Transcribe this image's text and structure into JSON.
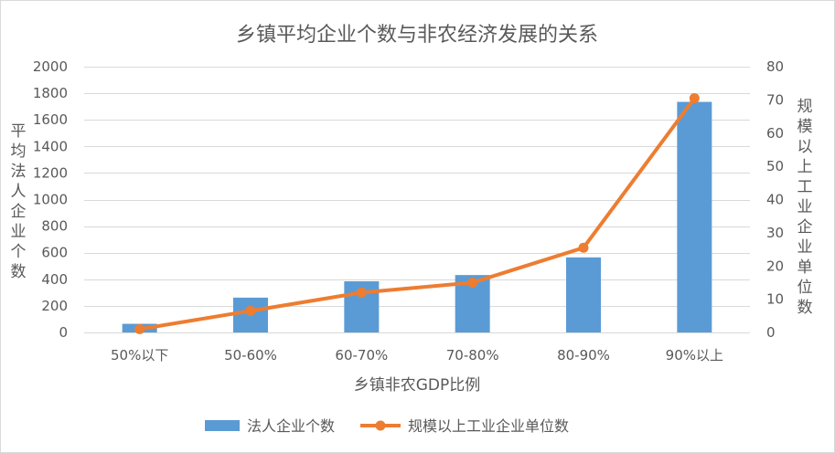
{
  "chart_data": {
    "type": "bar",
    "title": "乡镇平均企业个数与非农经济发展的关系",
    "xlabel": "乡镇非农GDP比例",
    "ylabel": "平均法人企业个数",
    "y2label": "规模以上工业企业单位数",
    "categories": [
      "50%以下",
      "50-60%",
      "60-70%",
      "70-80%",
      "80-90%",
      "90%以上"
    ],
    "ylim": [
      0,
      2000
    ],
    "y_ticks": [
      0,
      200,
      400,
      600,
      800,
      1000,
      1200,
      1400,
      1600,
      1800,
      2000
    ],
    "y2lim": [
      0,
      80
    ],
    "y2_ticks": [
      0,
      10,
      20,
      30,
      40,
      50,
      60,
      70,
      80
    ],
    "series": [
      {
        "name": "法人企业个数",
        "type": "bar",
        "axis": "left",
        "color": "#5b9bd5",
        "values": [
          65,
          262,
          385,
          432,
          565,
          1735
        ]
      },
      {
        "name": "规模以上工业企业单位数",
        "type": "line",
        "axis": "right",
        "color": "#ed7d31",
        "values": [
          1,
          6.5,
          12,
          15,
          25.5,
          70.5
        ]
      }
    ],
    "grid": true,
    "legend": "bottom"
  }
}
